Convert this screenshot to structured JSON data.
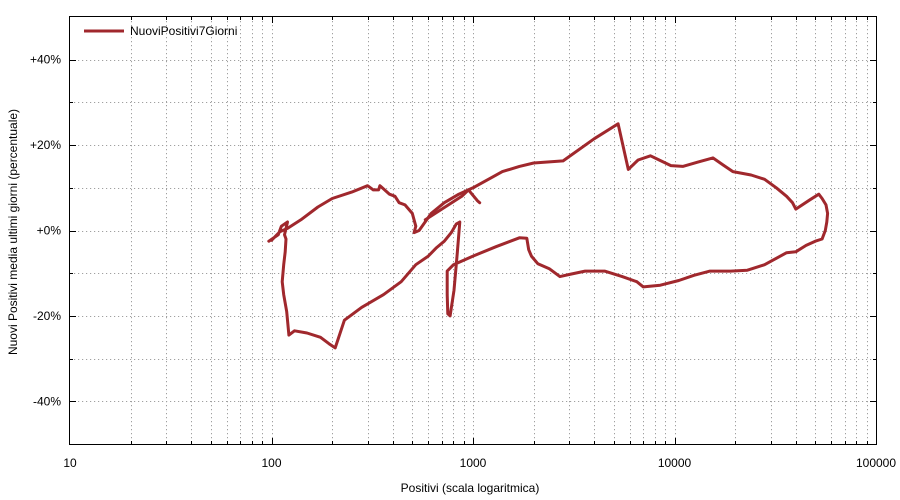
{
  "chart_data": {
    "type": "line",
    "title": "",
    "xlabel": "Positivi (scala logaritmica)",
    "ylabel": "Nuovi Positivi media ultimi giorni (percentuale)",
    "x_scale": "log",
    "xlim": [
      10,
      100000
    ],
    "ylim": [
      -50,
      50
    ],
    "x_ticks": [
      10,
      100,
      1000,
      10000,
      100000
    ],
    "x_tick_labels": [
      "10",
      "100",
      "1000",
      "10000",
      "100000"
    ],
    "y_ticks": [
      -40,
      -20,
      0,
      20,
      40
    ],
    "y_tick_labels": [
      "-40%",
      "-20%",
      "+0%",
      "+20%",
      "+40%"
    ],
    "grid": true,
    "legend_position": "top-left",
    "series": [
      {
        "name": "NuoviPositivi7Giorni",
        "color": "#a0282d",
        "points": [
          [
            97,
            -2.5
          ],
          [
            108,
            -1
          ],
          [
            112,
            1
          ],
          [
            120,
            2
          ],
          [
            116,
            -1
          ],
          [
            118,
            -2
          ],
          [
            117,
            -5
          ],
          [
            115,
            -8
          ],
          [
            113,
            -12
          ],
          [
            115,
            -15
          ],
          [
            119,
            -19
          ],
          [
            122,
            -24.5
          ],
          [
            130,
            -23.5
          ],
          [
            150,
            -24
          ],
          [
            175,
            -25
          ],
          [
            193,
            -26.5
          ],
          [
            207,
            -27.5
          ],
          [
            230,
            -21
          ],
          [
            280,
            -18
          ],
          [
            360,
            -15
          ],
          [
            440,
            -12
          ],
          [
            520,
            -8
          ],
          [
            600,
            -6
          ],
          [
            660,
            -4
          ],
          [
            720,
            -2.5
          ],
          [
            780,
            -0.5
          ],
          [
            825,
            1.5
          ],
          [
            860,
            2
          ],
          [
            835,
            -5.5
          ],
          [
            805,
            -14
          ],
          [
            770,
            -20
          ],
          [
            750,
            -19.5
          ],
          [
            745,
            -15
          ],
          [
            745,
            -9.5
          ],
          [
            800,
            -8
          ],
          [
            1000,
            -6
          ],
          [
            1300,
            -3.8
          ],
          [
            1700,
            -1.7
          ],
          [
            1850,
            -1.8
          ],
          [
            1890,
            -4.5
          ],
          [
            1950,
            -6
          ],
          [
            2100,
            -7.8
          ],
          [
            2400,
            -9
          ],
          [
            2700,
            -10.8
          ],
          [
            3000,
            -10.3
          ],
          [
            3600,
            -9.5
          ],
          [
            4500,
            -9.5
          ],
          [
            5500,
            -10.8
          ],
          [
            6500,
            -12
          ],
          [
            7000,
            -13.2
          ],
          [
            8500,
            -12.8
          ],
          [
            10500,
            -11.7
          ],
          [
            12500,
            -10.5
          ],
          [
            15000,
            -9.5
          ],
          [
            19000,
            -9.5
          ],
          [
            23000,
            -9.3
          ],
          [
            28000,
            -8
          ],
          [
            32000,
            -6.5
          ],
          [
            36000,
            -5.2
          ],
          [
            40000,
            -5
          ],
          [
            45000,
            -3.5
          ],
          [
            50000,
            -2.5
          ],
          [
            54000,
            -2
          ],
          [
            56000,
            0
          ],
          [
            57000,
            2
          ],
          [
            57500,
            4
          ],
          [
            56500,
            6
          ],
          [
            54000,
            7.5
          ],
          [
            52000,
            8.5
          ],
          [
            47000,
            7.2
          ],
          [
            40000,
            5
          ],
          [
            38500,
            6.5
          ],
          [
            36000,
            8
          ],
          [
            32000,
            10
          ],
          [
            28000,
            12
          ],
          [
            24000,
            13
          ],
          [
            19500,
            13.8
          ],
          [
            17500,
            15.3
          ],
          [
            15500,
            17
          ],
          [
            13000,
            16
          ],
          [
            11000,
            15
          ],
          [
            9600,
            15.2
          ],
          [
            8400,
            16.5
          ],
          [
            7600,
            17.5
          ],
          [
            6600,
            16.5
          ],
          [
            5900,
            14.3
          ],
          [
            5250,
            25
          ],
          [
            4000,
            21.5
          ],
          [
            2800,
            16.3
          ],
          [
            2000,
            15.8
          ],
          [
            1700,
            15
          ],
          [
            1400,
            13.8
          ],
          [
            1250,
            12.5
          ],
          [
            1000,
            10
          ],
          [
            850,
            8.5
          ],
          [
            720,
            6.5
          ],
          [
            620,
            4
          ],
          [
            540,
            0
          ],
          [
            510,
            -0.5
          ],
          [
            520,
            1
          ],
          [
            500,
            4
          ],
          [
            460,
            6
          ],
          [
            430,
            6.5
          ],
          [
            410,
            8
          ],
          [
            385,
            8.5
          ],
          [
            345,
            10.5
          ],
          [
            340,
            9.5
          ],
          [
            320,
            9.5
          ],
          [
            300,
            10.5
          ],
          [
            250,
            9
          ],
          [
            200,
            7.5
          ],
          [
            170,
            5.5
          ],
          [
            140,
            2.5
          ],
          [
            120,
            0.5
          ],
          [
            110,
            -0.3
          ],
          [
            100,
            -2.3
          ]
        ]
      },
      {
        "name": "",
        "color": "#a0282d",
        "points": [
          [
            580,
            2.5
          ],
          [
            880,
            8
          ],
          [
            950,
            9.5
          ],
          [
            1050,
            7
          ],
          [
            1080,
            6.5
          ]
        ]
      }
    ]
  }
}
